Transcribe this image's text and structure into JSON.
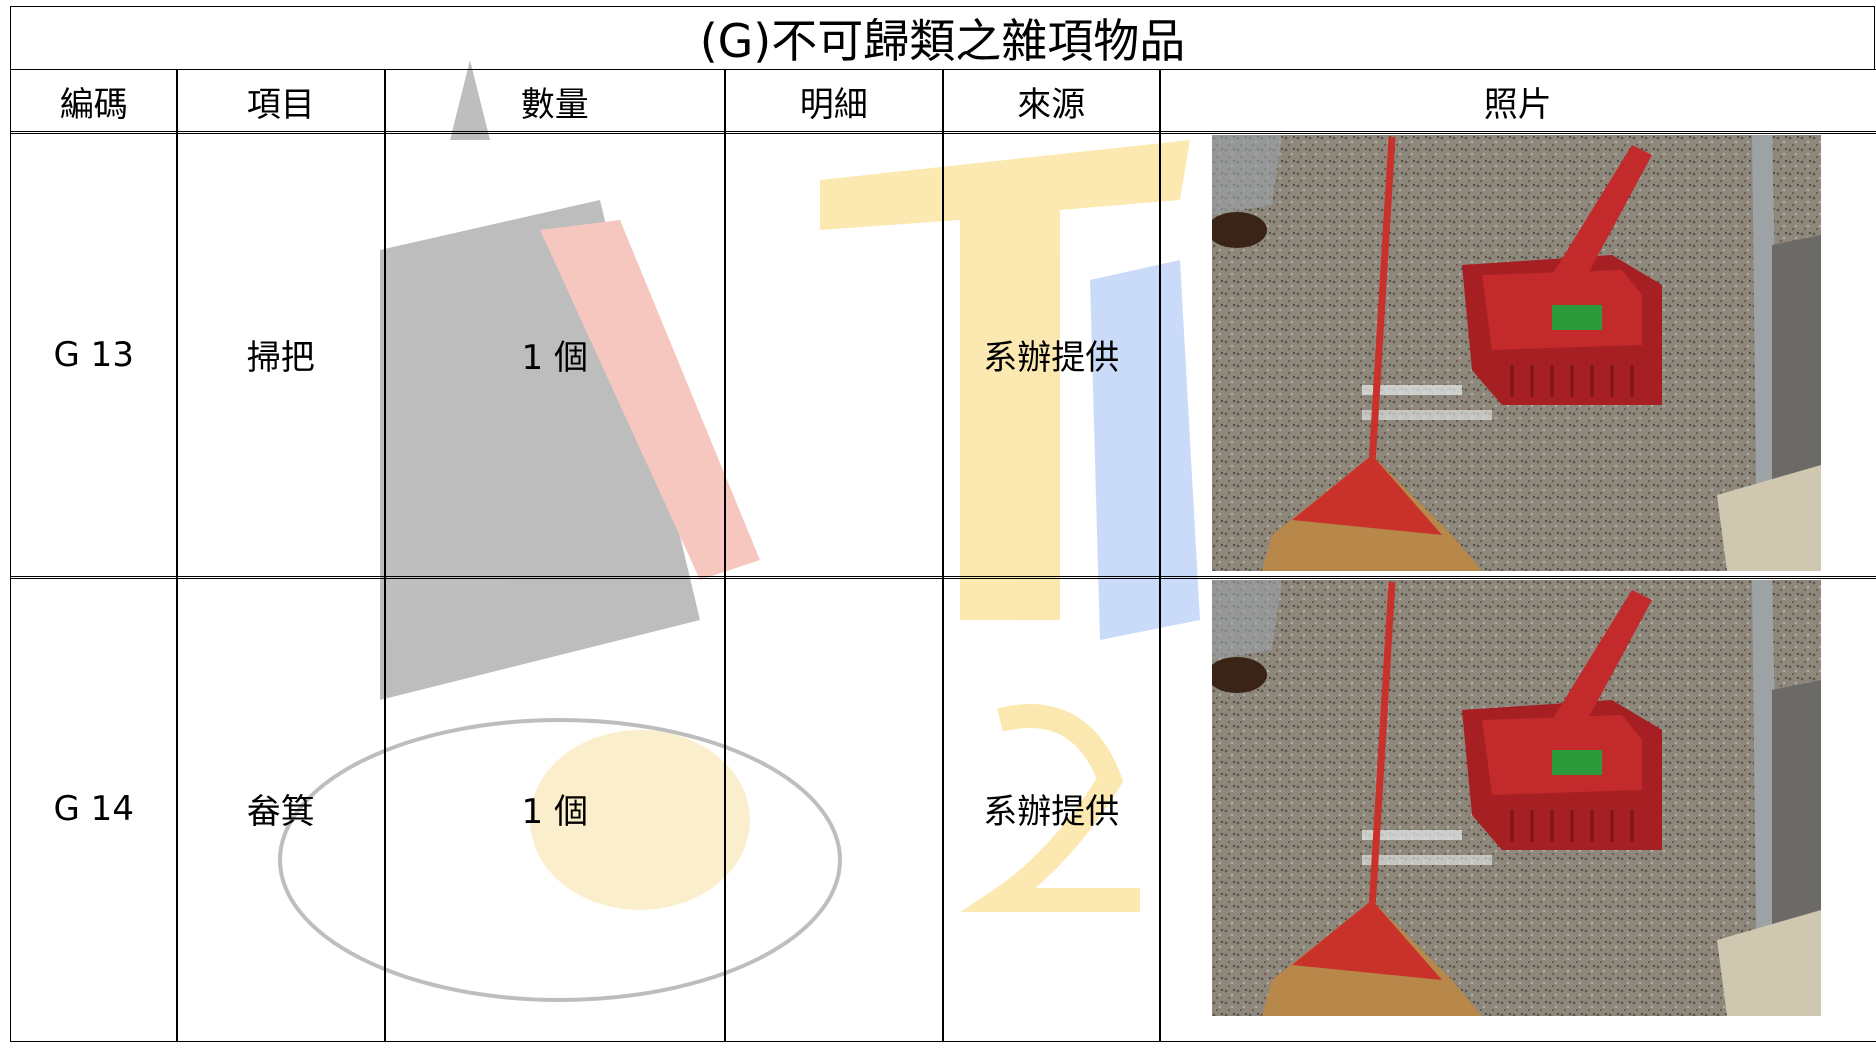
{
  "table": {
    "title": "(G)不可歸類之雜項物品",
    "header": [
      "編碼",
      "項目",
      "數量",
      "明細",
      "來源",
      "照片"
    ],
    "rows": [
      [
        "G 13",
        "掃把",
        "1 個",
        "",
        "系辦提供"
      ],
      [
        "G 14",
        "畚箕",
        "1 個",
        "",
        "系辦提供"
      ]
    ]
  }
}
